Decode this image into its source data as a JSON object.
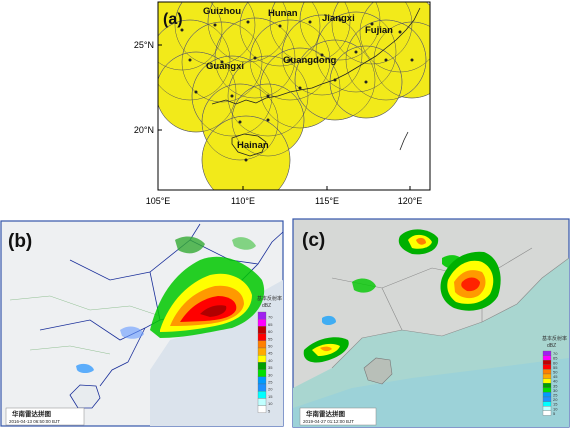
{
  "panel_a": {
    "label": "(a)",
    "provinces": [
      "Guizhou",
      "Hunan",
      "Jiangxi",
      "Fujian",
      "Guangxi",
      "Guangdong",
      "Hainan"
    ],
    "lat_ticks": [
      "25°N",
      "20°N"
    ],
    "lon_ticks": [
      "105°E",
      "110°E",
      "115°E",
      "120°E"
    ]
  },
  "panel_b": {
    "label": "(b)",
    "title_cn": "华南雷达拼图",
    "timestamp": "2016-04-13 06:50:00 BJT",
    "legend_title": "基本反射率",
    "legend_unit": "dBZ",
    "legend_values": [
      "70",
      "65",
      "60",
      "55",
      "50",
      "45",
      "40",
      "35",
      "30",
      "25",
      "20",
      "15",
      "10",
      "5"
    ]
  },
  "panel_c": {
    "label": "(c)",
    "title_cn": "华南雷达拼图",
    "timestamp": "2019-04-27 01:12:00 BJT",
    "legend_title": "基本反射率",
    "legend_unit": "dBZ",
    "legend_values": [
      "70",
      "65",
      "60",
      "55",
      "50",
      "45",
      "40",
      "35",
      "30",
      "25",
      "20",
      "15",
      "10",
      "5"
    ]
  },
  "colors": {
    "coverage": "#f2ea1a",
    "legend_scale": [
      "#a020f0",
      "#ff00ff",
      "#c00000",
      "#ff0000",
      "#ff7f00",
      "#ffaa00",
      "#ffff00",
      "#00a000",
      "#00e000",
      "#009bff",
      "#1e90ff",
      "#00ffff",
      "#c0ffff",
      "#ffffff"
    ]
  }
}
